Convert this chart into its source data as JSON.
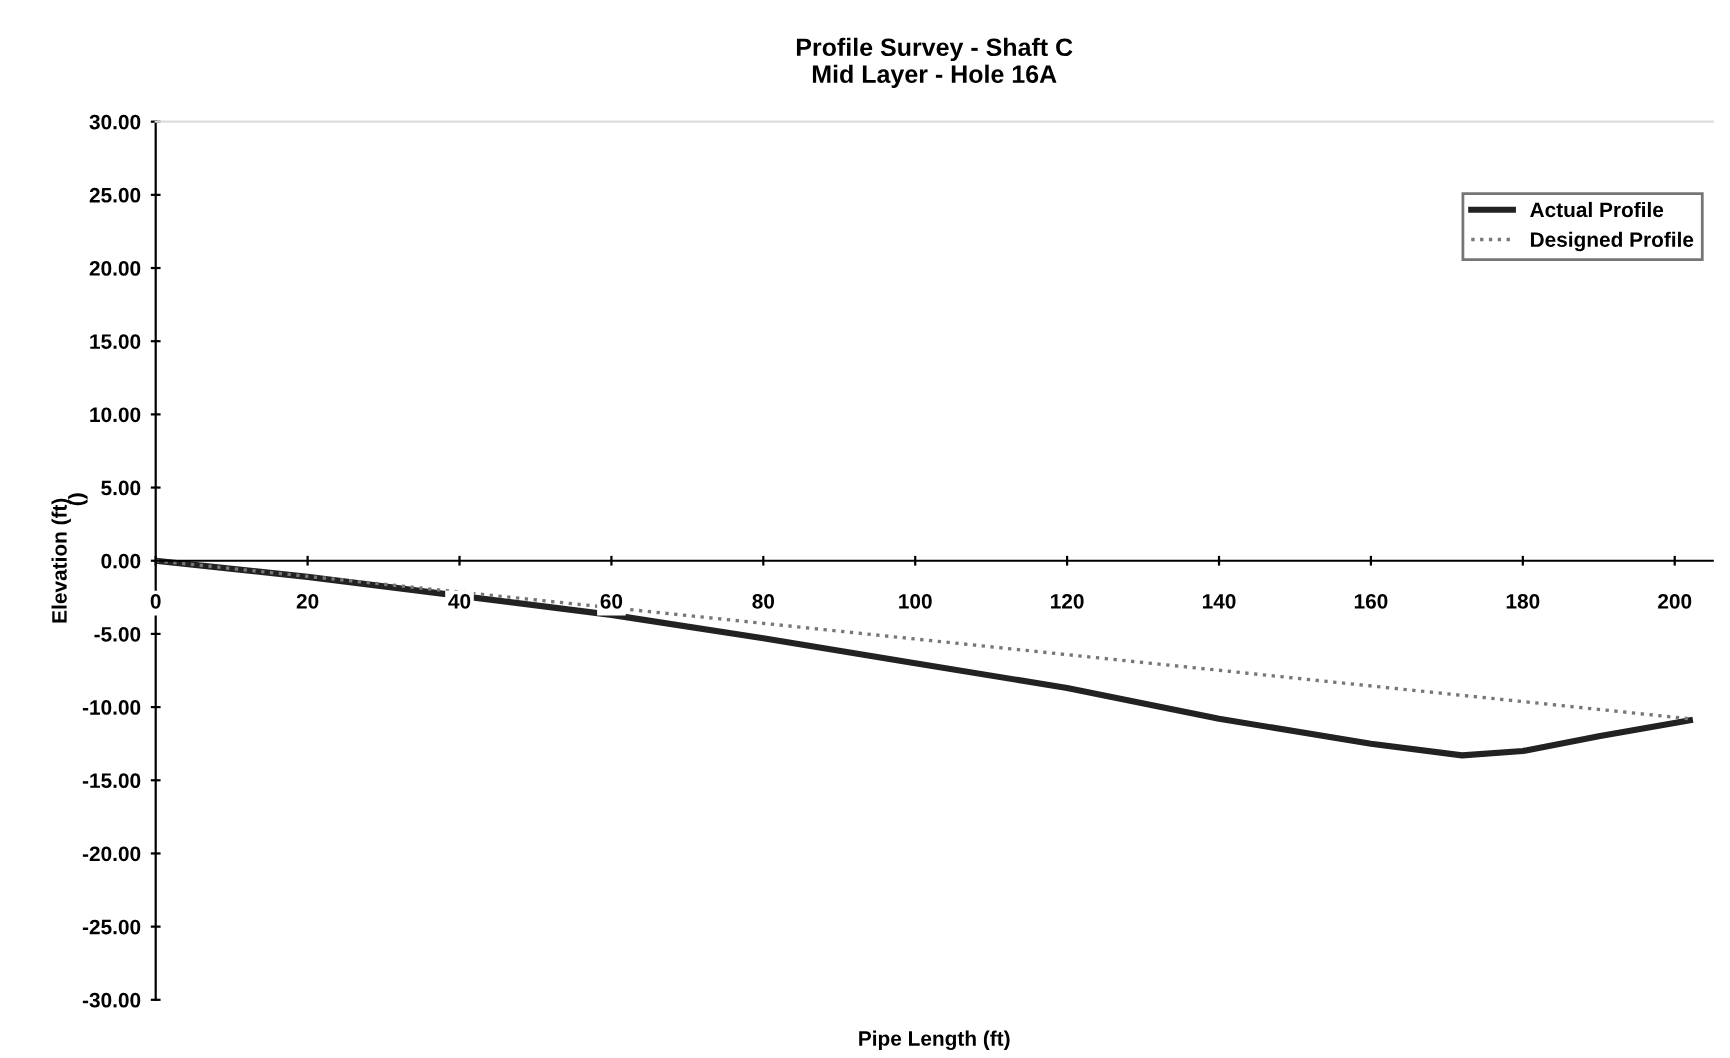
{
  "chart_data": {
    "type": "line",
    "title": "Profile Survey - Shaft C\nMid Layer - Hole 16A",
    "xlabel": "Pipe Length (ft)",
    "ylabel": "Elevation (ft)",
    "annotations": [
      "()"
    ],
    "xlim": [
      0,
      205
    ],
    "xticks": [
      0,
      20,
      40,
      60,
      80,
      100,
      120,
      140,
      160,
      180,
      200
    ],
    "ylim": [
      -30,
      30
    ],
    "yticks": [
      {
        "value": 30,
        "label": "30.00"
      },
      {
        "value": 25,
        "label": "25.00"
      },
      {
        "value": 20,
        "label": "20.00"
      },
      {
        "value": 15,
        "label": "15.00"
      },
      {
        "value": 10,
        "label": "10.00"
      },
      {
        "value": 5,
        "label": "5.00"
      },
      {
        "value": 0,
        "label": "0.00"
      },
      {
        "value": -5,
        "label": "-5.00"
      },
      {
        "value": -10,
        "label": "-10.00"
      },
      {
        "value": -15,
        "label": "-15.00"
      },
      {
        "value": -20,
        "label": "-20.00"
      },
      {
        "value": -25,
        "label": "-25.00"
      },
      {
        "value": -30,
        "label": "-30.00"
      }
    ],
    "grid": false,
    "legend": "top right",
    "marker": "none",
    "series": [
      {
        "name": "Actual Profile",
        "color": "#222222",
        "line_style": "solid",
        "x": [
          0,
          20,
          60,
          80,
          100,
          120,
          140,
          160,
          172,
          180,
          190,
          202
        ],
        "values": [
          0,
          -1.1,
          -3.7,
          -5.3,
          -7.0,
          -8.7,
          -10.8,
          -12.5,
          -13.3,
          -13.0,
          -12.0,
          -10.9
        ]
      },
      {
        "name": "Designed Profile",
        "color": "#777777",
        "line_style": "dotted",
        "x": [
          0,
          202
        ],
        "values": [
          0,
          -10.8
        ]
      }
    ]
  }
}
